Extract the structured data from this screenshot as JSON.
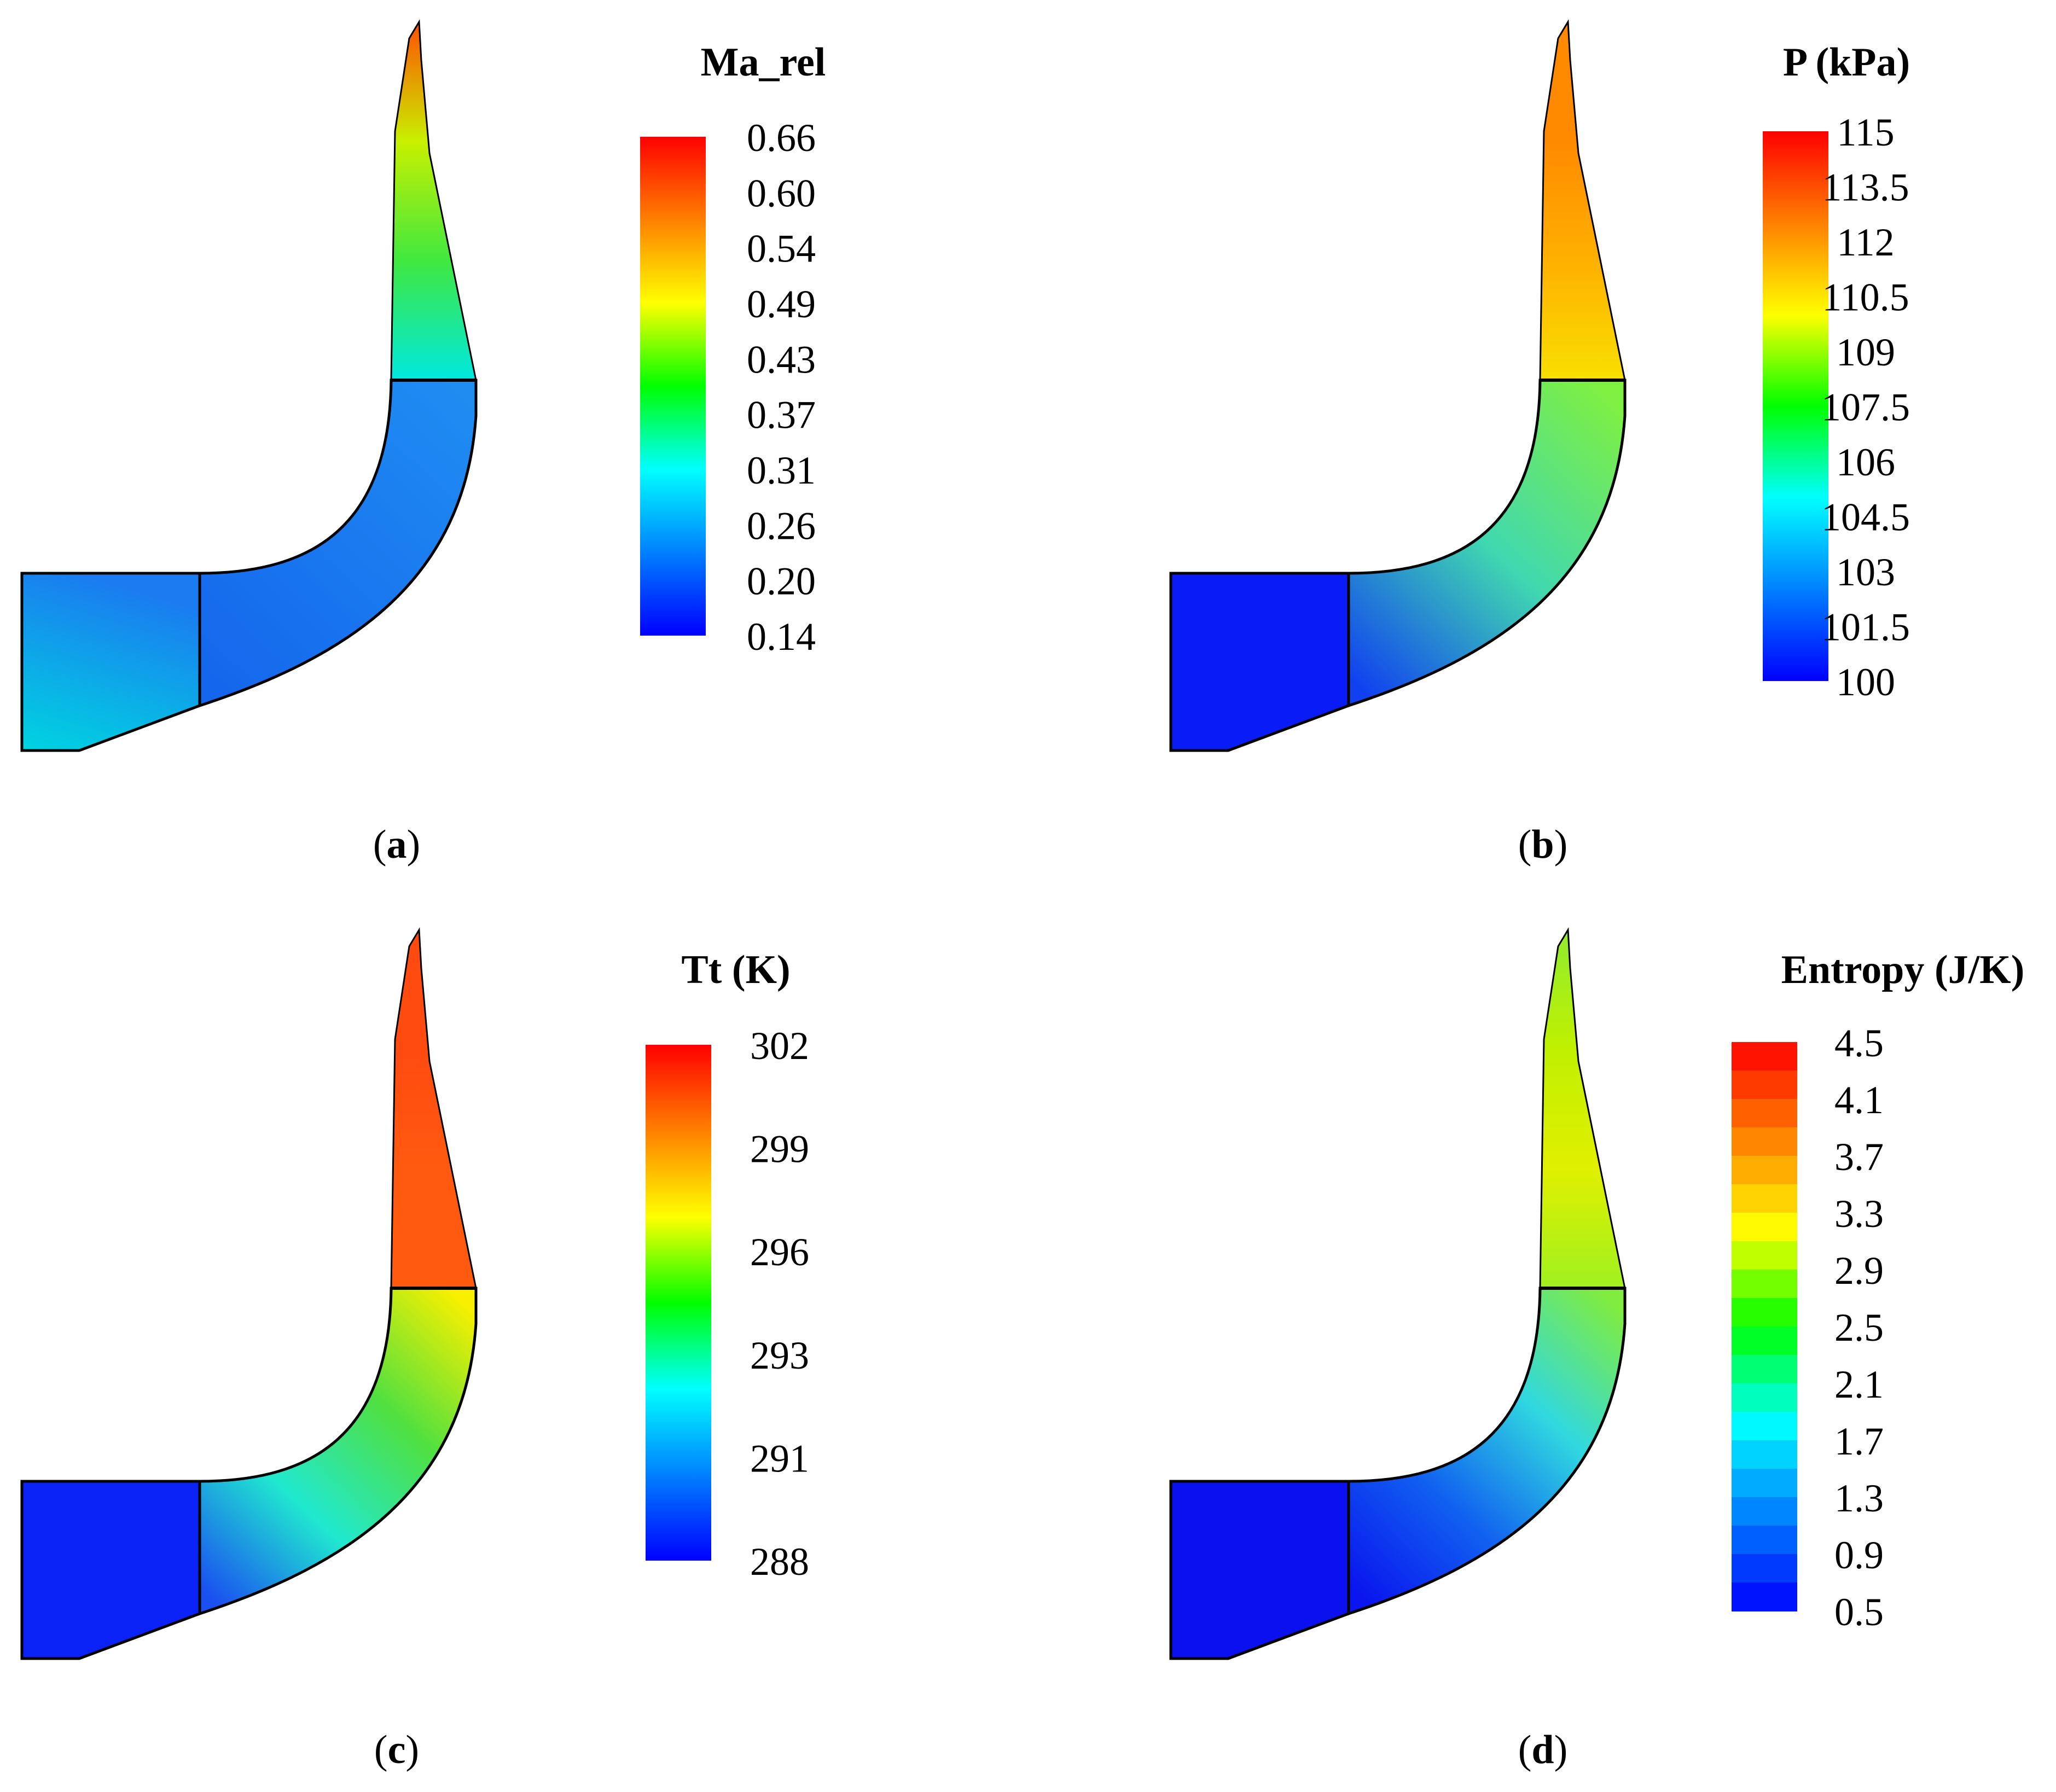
{
  "figure": {
    "panels": [
      {
        "id": "a",
        "caption_letter": "a",
        "legend": {
          "title": "Ma_rel",
          "ticks": [
            "0.66",
            "0.60",
            "0.54",
            "0.49",
            "0.43",
            "0.37",
            "0.31",
            "0.26",
            "0.20",
            "0.14"
          ],
          "smooth": true
        },
        "fields": {
          "inlet": [
            "#1a7cf0",
            "#00d4e0"
          ],
          "bend": [
            "#1466ec",
            "#1f8cf2"
          ],
          "blade": [
            "#00e8e0",
            "#40e840",
            "#c8f000",
            "#ff5000"
          ]
        }
      },
      {
        "id": "b",
        "caption_letter": "b",
        "legend": {
          "title": "P (kPa)",
          "ticks": [
            "115",
            "113.5",
            "112",
            "110.5",
            "109",
            "107.5",
            "106",
            "104.5",
            "103",
            "101.5",
            "100"
          ],
          "smooth": true
        },
        "fields": {
          "inlet": [
            "#0a1cf5",
            "#0a1cf5"
          ],
          "bend": [
            "#1040f0",
            "#40d8b0",
            "#80f040"
          ],
          "blade": [
            "#f8e000",
            "#ffb000",
            "#ff8a00",
            "#ff8a00"
          ]
        }
      },
      {
        "id": "c",
        "caption_letter": "c",
        "legend": {
          "title": "Tt (K)",
          "ticks": [
            "302",
            "299",
            "296",
            "293",
            "291",
            "288"
          ],
          "smooth": true
        },
        "fields": {
          "inlet": [
            "#0a22f5",
            "#0a22f5"
          ],
          "bend": [
            "#1a50f0",
            "#20e8d0",
            "#50e040",
            "#f8f000"
          ],
          "blade": [
            "#ff5a10",
            "#ff5a10",
            "#ff4a10",
            "#ff4a10"
          ]
        }
      },
      {
        "id": "d",
        "caption_letter": "d",
        "legend": {
          "title": "Entropy (J/K)",
          "ticks": [
            "4.5",
            "4.1",
            "3.7",
            "3.3",
            "2.9",
            "2.5",
            "2.1",
            "1.7",
            "1.3",
            "0.9",
            "0.5"
          ],
          "smooth": false
        },
        "fields": {
          "inlet": [
            "#0a10ee",
            "#0a10ee"
          ],
          "bend": [
            "#0a14ee",
            "#1060f0",
            "#30d8e0",
            "#80ec40"
          ],
          "blade": [
            "#a0f020",
            "#e0f000",
            "#c0f000",
            "#90ec30"
          ]
        }
      }
    ],
    "colormap": [
      "#0000ff",
      "#0080ff",
      "#00ffff",
      "#00ff00",
      "#ffff00",
      "#ff8000",
      "#ff0000"
    ]
  }
}
